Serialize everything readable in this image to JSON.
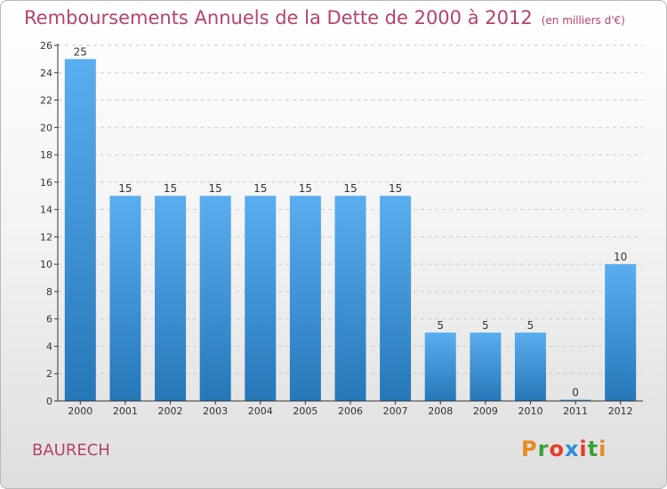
{
  "title": "Remboursements Annuels de la Dette de 2000 à 2012",
  "subtitle": "(en milliers d'€)",
  "commune": "BAURECH",
  "logo": {
    "letters": [
      "P",
      "r",
      "o",
      "x",
      "i",
      "t",
      "i"
    ],
    "colors": [
      "#e98a1c",
      "#3aa03a",
      "#e83b2a",
      "#2a8fd8",
      "#e83b2a",
      "#3aa03a",
      "#e98a1c"
    ]
  },
  "colors": {
    "bar_light": "#5aaef0",
    "bar_dark": "#2577b8",
    "title": "#b5426e",
    "axis": "#333333",
    "grid": "#cccccc"
  },
  "chart_data": {
    "type": "bar",
    "title": "Remboursements Annuels de la Dette de 2000 à 2012",
    "subtitle": "(en milliers d'€)",
    "xlabel": "",
    "ylabel": "",
    "categories": [
      "2000",
      "2001",
      "2002",
      "2003",
      "2004",
      "2005",
      "2006",
      "2007",
      "2008",
      "2009",
      "2010",
      "2011",
      "2012"
    ],
    "values": [
      25,
      15,
      15,
      15,
      15,
      15,
      15,
      15,
      5,
      5,
      5,
      0,
      10
    ],
    "ylim": [
      0,
      26
    ],
    "yticks": [
      0,
      2,
      4,
      6,
      8,
      10,
      12,
      14,
      16,
      18,
      20,
      22,
      24,
      26
    ],
    "grid": true
  }
}
